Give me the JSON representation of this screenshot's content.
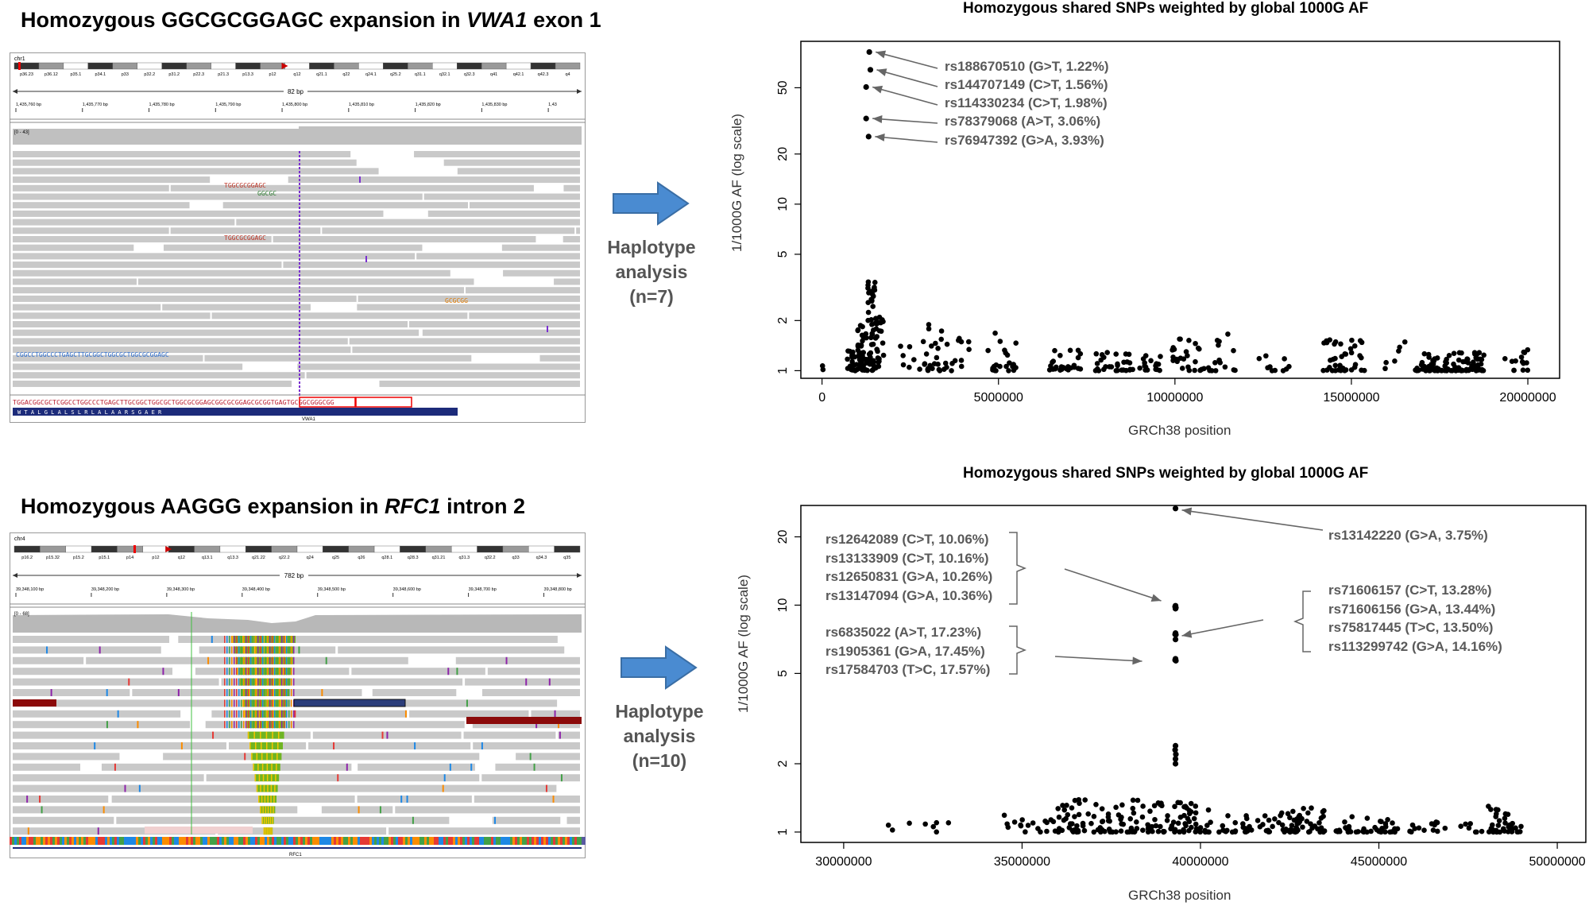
{
  "panels": {
    "top_left_title": {
      "prefix": "Homozygous GGCGCGGAGC expansion in ",
      "gene": "VWA1",
      "suffix": " exon 1"
    },
    "bottom_left_title": {
      "prefix": "Homozygous AAGGG expansion in ",
      "gene": "RFC1",
      "suffix": " intron 2"
    },
    "haplotype_top": "Haplotype\nanalysis\n(n=7)",
    "haplotype_bottom": "Haplotype\nanalysis\n(n=10)"
  },
  "igv_top": {
    "chrom": "chr1",
    "span": "82 bp",
    "range_label": "[0 - 43]",
    "gene": "VWA1",
    "bands": [
      "p36.23",
      "p36.12",
      "p35.1",
      "p34.1",
      "p33",
      "p32.2",
      "p31.2",
      "p22.3",
      "p21.3",
      "p13.3",
      "p12",
      "q12",
      "q21.1",
      "q22",
      "q24.1",
      "q25.2",
      "q31.1",
      "q32.1",
      "q32.3",
      "q41",
      "q42.1",
      "q42.3",
      "q4"
    ],
    "ticks": [
      "1,435,760 bp",
      "1,435,770 bp",
      "1,435,780 bp",
      "1,435,790 bp",
      "1,435,800 bp",
      "1,435,810 bp",
      "1,435,820 bp",
      "1,435,830 bp",
      "1,43"
    ],
    "insert_1": "TGGCGCGGAGC",
    "insert_2": "GGCGC",
    "insert_3": "TGGCGCGGAGC",
    "insert_4": "GCGCGG",
    "soft_clip": "CGGCCTGGCCCTGAGCTTGCGGCTGGCGCTGGCGCGGAGC",
    "ref_seq": "TGGACGGCGCTCGGCCTGGCCCTGAGCTTGCGGCTGGCGCTGGCGCGGAGCGGCGCGGAGCGCGGTGAGTGCGGCGGGCGG",
    "aa_seq": "W  T  A  L  G  L  A  L  S  L  R  L  A  L  A  A  R  S  G  A  E  R"
  },
  "igv_bottom": {
    "chrom": "chr4",
    "span": "782 bp",
    "range_label": "[0 - 68]",
    "gene": "RFC1",
    "bands": [
      "p16.2",
      "p15.32",
      "p15.2",
      "p15.1",
      "p14",
      "p12",
      "q12",
      "q13.1",
      "q13.3",
      "q21.22",
      "q22.2",
      "q24",
      "q25",
      "q26",
      "q28.1",
      "q28.3",
      "q31.21",
      "q31.3",
      "q32.2",
      "q33",
      "q34.3",
      "q35"
    ],
    "ticks": [
      "39,348,100 bp",
      "39,348,200 bp",
      "39,348,300 bp",
      "39,348,400 bp",
      "39,348,500 bp",
      "39,348,600 bp",
      "39,348,700 bp",
      "39,348,800 bp"
    ]
  },
  "colors": {
    "arrow_fill": "#4a8bd1",
    "arrow_stroke": "#3a6ea5",
    "read_gray": "#c9c9c9",
    "insertion_purple": "#7a2fd0",
    "expansion_green": "#6fb422",
    "annotation_gray": "#595959"
  },
  "chart_data": [
    {
      "type": "scatter",
      "title": "Homozygous shared SNPs weighted by global 1000G AF",
      "xlabel": "GRCh38 position",
      "ylabel": "1/1000G AF (log scale)",
      "yscale": "log",
      "xlim": [
        -600000,
        20900000
      ],
      "ylim": [
        0.9,
        95
      ],
      "xticks": [
        0,
        5000000,
        10000000,
        15000000,
        20000000
      ],
      "yticks": [
        1,
        2,
        5,
        10,
        20,
        50
      ],
      "annotations": [
        {
          "label": "rs188670510 (G>T, 1.22%)",
          "x": 1340000,
          "y": 81.97
        },
        {
          "label": "rs144707149 (C>T, 1.56%)",
          "x": 1370000,
          "y": 64.1
        },
        {
          "label": "rs114330234 (C>T, 1.98%)",
          "x": 1250000,
          "y": 50.51
        },
        {
          "label": "rs78379068 (A>T, 3.06%)",
          "x": 1250000,
          "y": 32.68
        },
        {
          "label": "rs76947392 (G>A, 3.93%)",
          "x": 1320000,
          "y": 25.45
        }
      ],
      "highlight_points": [
        [
          1340000,
          81.97
        ],
        [
          1370000,
          64.1
        ],
        [
          1250000,
          50.51
        ],
        [
          1250000,
          32.68
        ],
        [
          1320000,
          25.45
        ]
      ]
    },
    {
      "type": "scatter",
      "title": "Homozygous shared SNPs weighted by global 1000G AF",
      "xlabel": "GRCh38 position",
      "ylabel": "1/1000G AF (log scale)",
      "yscale": "log",
      "xlim": [
        28800000,
        50800000
      ],
      "ylim": [
        0.9,
        27.5
      ],
      "xticks": [
        30000000,
        35000000,
        40000000,
        45000000,
        50000000
      ],
      "yticks": [
        1,
        2,
        5,
        10,
        20
      ],
      "annotations": [
        {
          "label": "rs13142220 (G>A, 3.75%)",
          "x": 39300000,
          "y": 26.67
        },
        {
          "group": [
            "rs12642089 (C>T, 10.06%)",
            "rs13133909 (C>T, 10.16%)",
            "rs12650831 (G>A, 10.26%)",
            "rs13147094 (G>A, 10.36%)"
          ]
        },
        {
          "group": [
            "rs6835022 (A>T, 17.23%)",
            "rs1905361 (G>A, 17.45%)",
            "rs17584703 (T>C, 17.57%)"
          ]
        },
        {
          "group": [
            "rs71606157 (C>T, 13.28%)",
            "rs71606156 (G>A, 13.44%)",
            "rs75817445 (T>C, 13.50%)",
            "rs113299742 (G>A, 14.16%)"
          ]
        }
      ],
      "highlight_points": [
        [
          39300000,
          26.67
        ],
        [
          39300000,
          9.94
        ],
        [
          39290000,
          9.84
        ],
        [
          39310000,
          9.75
        ],
        [
          39300000,
          9.65
        ],
        [
          39300000,
          7.53
        ],
        [
          39290000,
          7.44
        ],
        [
          39310000,
          7.41
        ],
        [
          39300000,
          7.06
        ],
        [
          39300000,
          5.8
        ],
        [
          39290000,
          5.73
        ],
        [
          39310000,
          5.69
        ],
        [
          39300000,
          2.4
        ],
        [
          39290000,
          2.3
        ],
        [
          39310000,
          2.2
        ],
        [
          39300000,
          2.1
        ],
        [
          39300000,
          2.0
        ]
      ]
    }
  ]
}
